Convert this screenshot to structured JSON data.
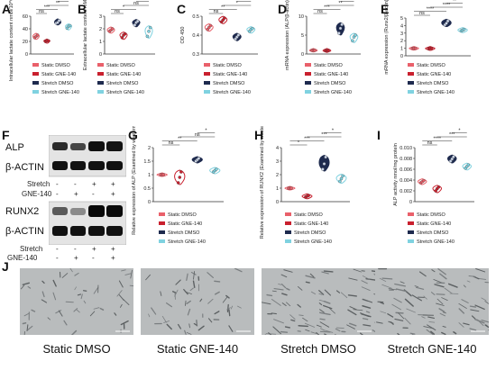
{
  "colors": {
    "static_dmso": "#E9606A",
    "static_gne": "#C9202E",
    "stretch_dmso": "#1E2A4E",
    "stretch_gne": "#7FD2E0",
    "dark_fill": "#1E2A4E"
  },
  "legend_entries": [
    "Static DMSO",
    "Static GNE-140",
    "Stretch DMSO",
    "Stretch GNE-140"
  ],
  "panels": {
    "A": "A",
    "B": "B",
    "C": "C",
    "D": "D",
    "E": "E",
    "F": "F",
    "G": "G",
    "H": "H",
    "I": "I",
    "J": "J"
  },
  "blot": {
    "alp_label": "ALP",
    "actin_label_1": "β-ACTIN",
    "runx2_label": "RUNX2",
    "actin_label_2": "β-ACTIN",
    "stretch_label": "Stretch",
    "gne_label": "GNE-140",
    "stretch_signs": [
      "-",
      "-",
      "+",
      "+"
    ],
    "gne_signs": [
      "-",
      "+",
      "-",
      "+"
    ]
  },
  "micrographs": {
    "captions": [
      "Static DMSO",
      "Static GNE-140",
      "Stretch DMSO",
      "Stretch GNE-140"
    ]
  },
  "chart_data": [
    {
      "panel": "A",
      "type": "violin",
      "ylabel": "Intracellular lactate content nmol/10^6 cell",
      "ylim": [
        0,
        60
      ],
      "yticks": [
        0,
        20,
        40,
        60
      ],
      "categories": [
        "Static DMSO",
        "Static GNE-140",
        "Stretch DMSO",
        "Stretch GNE-140"
      ],
      "values": [
        [
          26,
          28,
          30
        ],
        [
          20,
          21,
          21
        ],
        [
          49,
          50,
          53
        ],
        [
          41,
          44,
          45
        ]
      ],
      "significance": [
        {
          "from": 0,
          "to": 1,
          "label": "ns"
        },
        {
          "from": 0,
          "to": 2,
          "label": "***"
        },
        {
          "from": 1,
          "to": 3,
          "label": "**"
        },
        {
          "from": 2,
          "to": 3,
          "label": "*"
        }
      ]
    },
    {
      "panel": "B",
      "type": "violin",
      "ylabel": "Extracellular lactate content mM",
      "ylim": [
        0,
        3
      ],
      "yticks": [
        0,
        1,
        2,
        3
      ],
      "categories": [
        "Static DMSO",
        "Static GNE-140",
        "Stretch DMSO",
        "Stretch GNE-140"
      ],
      "values": [
        [
          1.8,
          1.9,
          2.0
        ],
        [
          1.3,
          1.5,
          1.6
        ],
        [
          2.3,
          2.5,
          2.6
        ],
        [
          1.4,
          1.8,
          2.1
        ]
      ],
      "significance": [
        {
          "from": 0,
          "to": 1,
          "label": "ns"
        },
        {
          "from": 0,
          "to": 2,
          "label": "*"
        },
        {
          "from": 1,
          "to": 3,
          "label": "ns"
        },
        {
          "from": 2,
          "to": 3,
          "label": "*"
        }
      ]
    },
    {
      "panel": "C",
      "type": "violin",
      "ylabel": "OD 450",
      "ylim": [
        0.3,
        0.5
      ],
      "yticks": [
        0.3,
        0.4,
        0.5
      ],
      "categories": [
        "Static DMSO",
        "Static GNE-140",
        "Stretch DMSO",
        "Stretch GNE-140"
      ],
      "values": [
        [
          0.43,
          0.44,
          0.45
        ],
        [
          0.47,
          0.48,
          0.49
        ],
        [
          0.38,
          0.39,
          0.4
        ],
        [
          0.42,
          0.43,
          0.435
        ]
      ],
      "significance": [
        {
          "from": 0,
          "to": 1,
          "label": "ns"
        },
        {
          "from": 0,
          "to": 2,
          "label": "**"
        },
        {
          "from": 1,
          "to": 3,
          "label": "*"
        },
        {
          "from": 2,
          "to": 3,
          "label": "**"
        }
      ]
    },
    {
      "panel": "D",
      "type": "violin",
      "ylabel": "mRNA expression (ALP/β-actin)",
      "ylim": [
        0,
        10
      ],
      "yticks": [
        0,
        5,
        10
      ],
      "categories": [
        "Static DMSO",
        "Static GNE-140",
        "Stretch DMSO",
        "Stretch GNE-140"
      ],
      "values": [
        [
          1.0,
          1.0,
          1.0
        ],
        [
          0.9,
          0.9,
          1.0
        ],
        [
          5.5,
          6.8,
          7.8
        ],
        [
          3.5,
          4.5,
          5.0
        ]
      ],
      "significance": [
        {
          "from": 0,
          "to": 1,
          "label": "ns"
        },
        {
          "from": 0,
          "to": 2,
          "label": "***"
        },
        {
          "from": 1,
          "to": 3,
          "label": "**"
        },
        {
          "from": 2,
          "to": 3,
          "label": "*"
        }
      ]
    },
    {
      "panel": "E",
      "type": "violin",
      "ylabel": "mRNA expression (Runx2/β-actin)",
      "ylim": [
        0,
        5
      ],
      "yticks": [
        0,
        1,
        2,
        3,
        4,
        5
      ],
      "categories": [
        "Static DMSO",
        "Static GNE-140",
        "Stretch DMSO",
        "Stretch GNE-140"
      ],
      "values": [
        [
          1.0,
          1.0,
          1.0
        ],
        [
          0.95,
          1.0,
          1.0
        ],
        [
          4.1,
          4.3,
          4.6
        ],
        [
          3.3,
          3.4,
          3.5
        ]
      ],
      "significance": [
        {
          "from": 0,
          "to": 1,
          "label": "ns"
        },
        {
          "from": 0,
          "to": 2,
          "label": "****"
        },
        {
          "from": 1,
          "to": 3,
          "label": "****"
        },
        {
          "from": 2,
          "to": 3,
          "label": "**"
        }
      ]
    },
    {
      "panel": "G",
      "type": "violin",
      "ylabel": "Relative expression of ALP (Examined by western blot)",
      "ylim": [
        0,
        2
      ],
      "yticks": [
        0,
        0.5,
        1.0,
        1.5,
        2.0
      ],
      "categories": [
        "Static DMSO",
        "Static GNE-140",
        "Stretch DMSO",
        "Stretch GNE-140"
      ],
      "values": [
        [
          1.0,
          1.0,
          1.0
        ],
        [
          0.7,
          0.9,
          1.1
        ],
        [
          1.5,
          1.55,
          1.6
        ],
        [
          1.1,
          1.15,
          1.2
        ]
      ],
      "significance": [
        {
          "from": 0,
          "to": 1,
          "label": "ns"
        },
        {
          "from": 0,
          "to": 2,
          "label": "**"
        },
        {
          "from": 1,
          "to": 3,
          "label": "ns"
        },
        {
          "from": 2,
          "to": 3,
          "label": "*"
        }
      ]
    },
    {
      "panel": "H",
      "type": "violin",
      "ylabel": "Relative expression of RUNX2 (Examined by western blot)",
      "ylim": [
        0,
        4
      ],
      "yticks": [
        0,
        1,
        2,
        3,
        4
      ],
      "categories": [
        "Static DMSO",
        "Static GNE-140",
        "Stretch DMSO",
        "Stretch GNE-140"
      ],
      "values": [
        [
          1.0,
          1.0,
          1.0
        ],
        [
          0.35,
          0.4,
          0.45
        ],
        [
          2.4,
          2.8,
          3.3
        ],
        [
          1.5,
          1.7,
          1.9
        ]
      ],
      "significance": [
        {
          "from": 0,
          "to": 1,
          "label": "*"
        },
        {
          "from": 0,
          "to": 2,
          "label": "***"
        },
        {
          "from": 1,
          "to": 3,
          "label": "***"
        },
        {
          "from": 2,
          "to": 3,
          "label": "*"
        }
      ]
    },
    {
      "panel": "I",
      "type": "violin",
      "ylabel": "ALP activity nmol/mg protein",
      "ylim": [
        0,
        0.01
      ],
      "yticks": [
        0,
        0.002,
        0.004,
        0.006,
        0.008,
        0.01
      ],
      "ytick_labels": [
        "0",
        "0.002",
        "0.004",
        "0.006",
        "0.008",
        "0.010"
      ],
      "categories": [
        "Static DMSO",
        "Static GNE-140",
        "Stretch DMSO",
        "Stretch GNE-140"
      ],
      "values": [
        [
          0.0035,
          0.0037,
          0.0039
        ],
        [
          0.002,
          0.0024,
          0.0027
        ],
        [
          0.0075,
          0.0079,
          0.0083
        ],
        [
          0.0062,
          0.0065,
          0.0068
        ]
      ],
      "significance": [
        {
          "from": 0,
          "to": 1,
          "label": "ns"
        },
        {
          "from": 0,
          "to": 2,
          "label": "****"
        },
        {
          "from": 1,
          "to": 3,
          "label": "***"
        },
        {
          "from": 2,
          "to": 3,
          "label": "*"
        }
      ]
    }
  ]
}
